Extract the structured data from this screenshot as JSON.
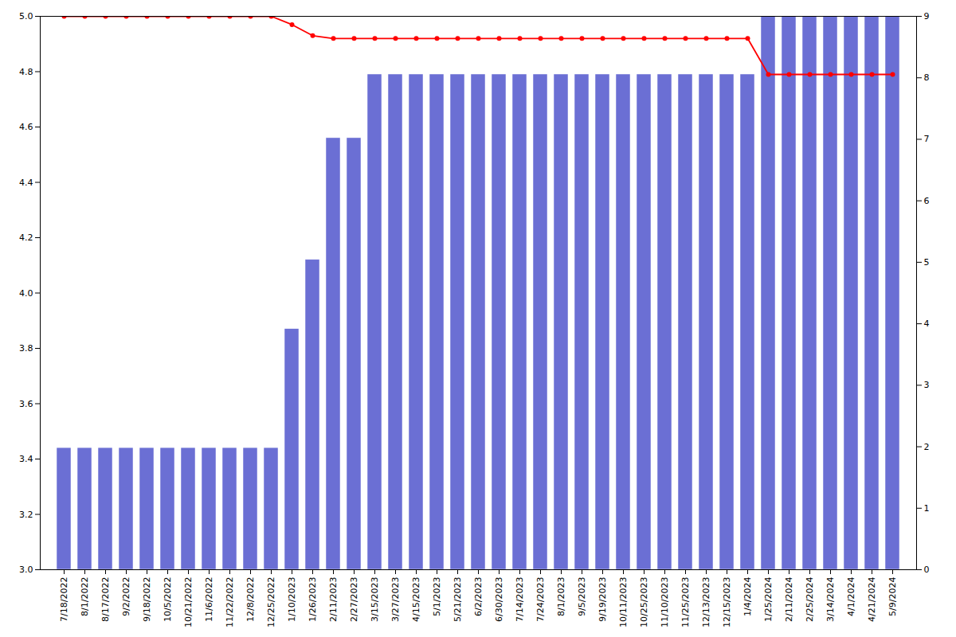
{
  "chart_data": {
    "type": "bar",
    "categories": [
      "7/18/2022",
      "8/1/2022",
      "8/17/2022",
      "9/2/2022",
      "9/18/2022",
      "10/5/2022",
      "10/21/2022",
      "11/6/2022",
      "11/22/2022",
      "12/8/2022",
      "12/25/2022",
      "1/10/2023",
      "1/26/2023",
      "2/11/2023",
      "2/27/2023",
      "3/15/2023",
      "3/27/2023",
      "4/15/2023",
      "5/1/2023",
      "5/21/2023",
      "6/2/2023",
      "6/30/2023",
      "7/14/2023",
      "7/24/2023",
      "8/1/2023",
      "9/5/2023",
      "9/19/2023",
      "10/11/2023",
      "10/25/2023",
      "11/10/2023",
      "11/25/2023",
      "12/13/2023",
      "12/15/2023",
      "1/4/2024",
      "1/25/2024",
      "2/11/2024",
      "2/25/2024",
      "3/14/2024",
      "4/1/2024",
      "4/21/2024",
      "5/9/2024"
    ],
    "series": [
      {
        "type": "bar",
        "color": "#6b6fd4",
        "values": [
          3.44,
          3.44,
          3.44,
          3.44,
          3.44,
          3.44,
          3.44,
          3.44,
          3.44,
          3.44,
          3.44,
          3.87,
          4.12,
          4.56,
          4.56,
          4.79,
          4.79,
          4.79,
          4.79,
          4.79,
          4.79,
          4.79,
          4.79,
          4.79,
          4.79,
          4.79,
          4.79,
          4.79,
          4.79,
          4.79,
          4.79,
          4.79,
          4.79,
          4.79,
          5.0,
          5.0,
          5.0,
          5.0,
          5.0,
          5.0,
          5.0
        ]
      },
      {
        "type": "line",
        "color": "#ff0000",
        "marker": "circle",
        "values": [
          5.0,
          5.0,
          5.0,
          5.0,
          5.0,
          5.0,
          5.0,
          5.0,
          5.0,
          5.0,
          5.0,
          4.97,
          4.93,
          4.92,
          4.92,
          4.92,
          4.92,
          4.92,
          4.92,
          4.92,
          4.92,
          4.92,
          4.92,
          4.92,
          4.92,
          4.92,
          4.92,
          4.92,
          4.92,
          4.92,
          4.92,
          4.92,
          4.92,
          4.92,
          4.79,
          4.79,
          4.79,
          4.79,
          4.79,
          4.79,
          4.79
        ]
      }
    ],
    "ylim": [
      3.0,
      5.0
    ],
    "yticks": [
      {
        "value": 3.0,
        "label": "3.0"
      },
      3.2,
      3.4,
      3.6,
      3.8,
      {
        "value": 4.0,
        "label": "4.0"
      },
      4.2,
      4.4,
      4.6,
      4.8,
      {
        "value": 5.0,
        "label": "5.0"
      }
    ],
    "y2lim": [
      0,
      9
    ],
    "y2ticks": [
      0,
      1,
      2,
      3,
      4,
      5,
      6,
      7,
      8,
      9
    ],
    "grid": false
  }
}
